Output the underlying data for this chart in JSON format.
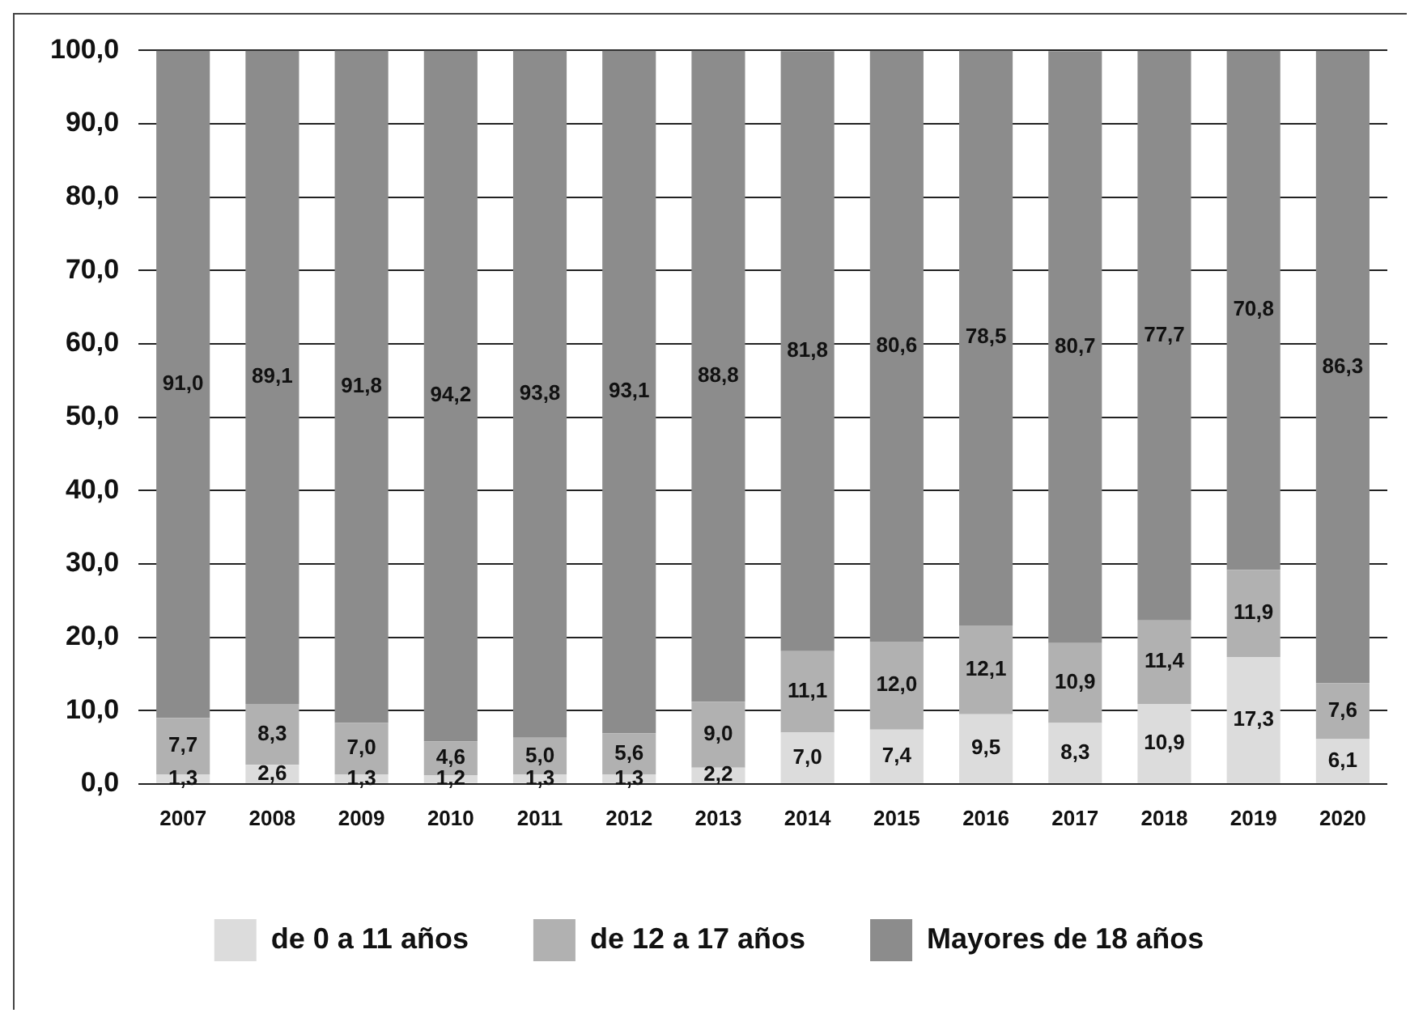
{
  "chart_data": {
    "type": "bar",
    "stacked": true,
    "categories": [
      "2007",
      "2008",
      "2009",
      "2010",
      "2011",
      "2012",
      "2013",
      "2014",
      "2015",
      "2016",
      "2017",
      "2018",
      "2019",
      "2020"
    ],
    "series": [
      {
        "name": "de 0 a 11 años",
        "color": "#dcdcdc",
        "values": [
          1.3,
          2.6,
          1.3,
          1.2,
          1.3,
          1.3,
          2.2,
          7.0,
          7.4,
          9.5,
          8.3,
          10.9,
          17.3,
          6.1
        ],
        "value_labels": [
          "1,3",
          "2,6",
          "1,3",
          "1,2",
          "1,3",
          "1,3",
          "2,2",
          "7,0",
          "7,4",
          "9,5",
          "8,3",
          "10,9",
          "17,3",
          "6,1"
        ]
      },
      {
        "name": "de 12 a 17 años",
        "color": "#b1b1b1",
        "values": [
          7.7,
          8.3,
          7.0,
          4.6,
          5.0,
          5.6,
          9.0,
          11.1,
          12.0,
          12.1,
          10.9,
          11.4,
          11.9,
          7.6
        ],
        "value_labels": [
          "7,7",
          "8,3",
          "7,0",
          "4,6",
          "5,0",
          "5,6",
          "9,0",
          "11,1",
          "12,0",
          "12,1",
          "10,9",
          "11,4",
          "11,9",
          "7,6"
        ]
      },
      {
        "name": "Mayores de 18 años",
        "color": "#8c8c8c",
        "values": [
          91.0,
          89.1,
          91.8,
          94.2,
          93.8,
          93.1,
          88.8,
          81.8,
          80.6,
          78.5,
          80.7,
          77.7,
          70.8,
          86.3
        ],
        "value_labels": [
          "91,0",
          "89,1",
          "91,8",
          "94,2",
          "93,8",
          "93,1",
          "88,8",
          "81,8",
          "80,6",
          "78,5",
          "80,7",
          "77,7",
          "70,8",
          "86,3"
        ]
      }
    ],
    "ylim": [
      0,
      100
    ],
    "yticks": [
      {
        "value": 0,
        "label": "0,0"
      },
      {
        "value": 10,
        "label": "10,0"
      },
      {
        "value": 20,
        "label": "20,0"
      },
      {
        "value": 30,
        "label": "30,0"
      },
      {
        "value": 40,
        "label": "40,0"
      },
      {
        "value": 50,
        "label": "50,0"
      },
      {
        "value": 60,
        "label": "60,0"
      },
      {
        "value": 70,
        "label": "70,0"
      },
      {
        "value": 80,
        "label": "80,0"
      },
      {
        "value": 90,
        "label": "90,0"
      },
      {
        "value": 100,
        "label": "100,0"
      }
    ],
    "grid": "y",
    "legend": "bottom"
  }
}
